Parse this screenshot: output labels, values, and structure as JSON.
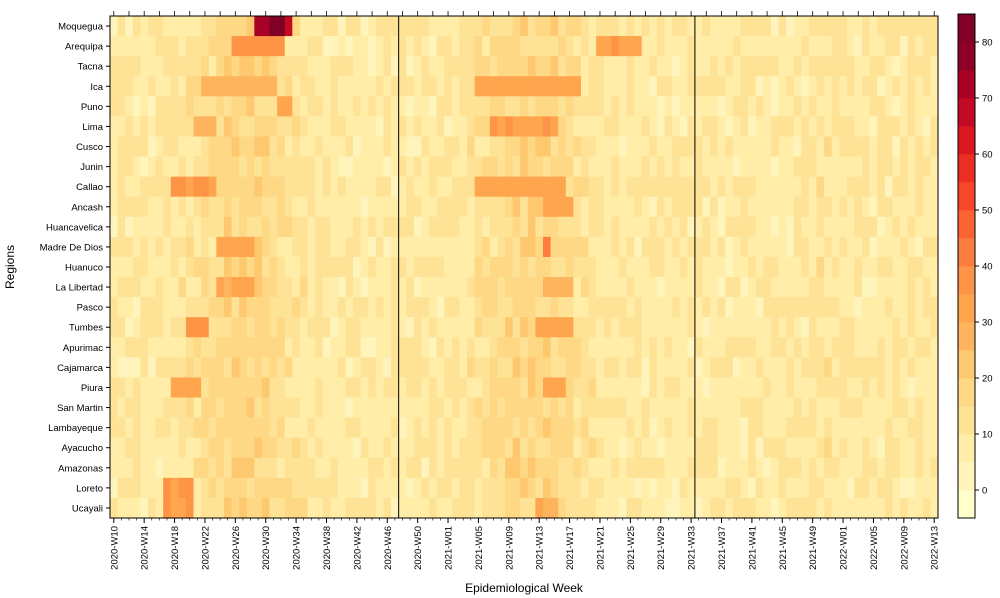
{
  "chart_data": {
    "type": "heatmap",
    "title": "",
    "xlabel": "Epidemiological Week",
    "ylabel": "Regions",
    "regions": [
      "Moquegua",
      "Arequipa",
      "Tacna",
      "Ica",
      "Puno",
      "Lima",
      "Cusco",
      "Junin",
      "Callao",
      "Ancash",
      "Huancavelica",
      "Madre De Dios",
      "Huanuco",
      "La Libertad",
      "Pasco",
      "Tumbes",
      "Apurimac",
      "Cajamarca",
      "Piura",
      "San Martin",
      "Lambayeque",
      "Ayacucho",
      "Amazonas",
      "Loreto",
      "Ucayali"
    ],
    "x_tick_labels": [
      "2020-W10",
      "2020-W14",
      "2020-W18",
      "2020-W22",
      "2020-W26",
      "2020-W30",
      "2020-W34",
      "2020-W38",
      "2020-W42",
      "2020-W46",
      "2020-W50",
      "2021-W01",
      "2021-W05",
      "2021-W09",
      "2021-W13",
      "2021-W17",
      "2021-W21",
      "2021-W25",
      "2021-W29",
      "2021-W33",
      "2021-W37",
      "2021-W41",
      "2021-W45",
      "2021-W49",
      "2022-W01",
      "2022-W05",
      "2022-W09",
      "2022-W13"
    ],
    "week_range": {
      "first": "2020-W10",
      "last": "2022-W13"
    },
    "vertical_lines_at": [
      "2020-W48",
      "2021-W34"
    ],
    "colorbar": {
      "min": -5,
      "max": 83,
      "step": 5,
      "tick_values": [
        0,
        10,
        20,
        30,
        40,
        50,
        60,
        70,
        80
      ],
      "palette": [
        "#FFFFCC",
        "#FFF5BC",
        "#FFEDA8",
        "#FEE396",
        "#FED884",
        "#FEC86F",
        "#FEB45D",
        "#FEA54E",
        "#FD9446",
        "#FD7E3C",
        "#FC6332",
        "#F64729",
        "#EA2E22",
        "#DA181F",
        "#C30A24",
        "#A90026",
        "#8F0026",
        "#800026"
      ]
    },
    "blocks": [
      {
        "region": "Moquegua",
        "from": "2020-W29",
        "to": "2020-W33",
        "value": 70
      },
      {
        "region": "Moquegua",
        "from": "2020-W31",
        "to": "2020-W32",
        "value": 82
      },
      {
        "region": "Arequipa",
        "from": "2020-W26",
        "to": "2020-W32",
        "value": 38
      },
      {
        "region": "Arequipa",
        "from": "2021-W21",
        "to": "2021-W26",
        "value": 34
      },
      {
        "region": "Ica",
        "from": "2021-W05",
        "to": "2021-W18",
        "value": 32
      },
      {
        "region": "Ica",
        "from": "2020-W22",
        "to": "2020-W31",
        "value": 27
      },
      {
        "region": "Puno",
        "from": "2020-W32",
        "to": "2020-W33",
        "value": 33
      },
      {
        "region": "Lima",
        "from": "2021-W07",
        "to": "2021-W15",
        "value": 34
      },
      {
        "region": "Lima",
        "from": "2020-W21",
        "to": "2020-W23",
        "value": 29
      },
      {
        "region": "Callao",
        "from": "2020-W18",
        "to": "2020-W23",
        "value": 36
      },
      {
        "region": "Callao",
        "from": "2021-W05",
        "to": "2021-W16",
        "value": 32
      },
      {
        "region": "Ancash",
        "from": "2021-W14",
        "to": "2021-W17",
        "value": 33
      },
      {
        "region": "Madre De Dios",
        "from": "2020-W24",
        "to": "2020-W28",
        "value": 32
      },
      {
        "region": "Madre De Dios",
        "from": "2021-W14",
        "to": "2021-W14",
        "value": 40
      },
      {
        "region": "La Libertad",
        "from": "2020-W24",
        "to": "2020-W28",
        "value": 30
      },
      {
        "region": "La Libertad",
        "from": "2021-W14",
        "to": "2021-W17",
        "value": 30
      },
      {
        "region": "Tumbes",
        "from": "2020-W20",
        "to": "2020-W22",
        "value": 37
      },
      {
        "region": "Tumbes",
        "from": "2021-W13",
        "to": "2021-W17",
        "value": 32
      },
      {
        "region": "Piura",
        "from": "2020-W18",
        "to": "2020-W21",
        "value": 32
      },
      {
        "region": "Piura",
        "from": "2021-W14",
        "to": "2021-W16",
        "value": 33
      },
      {
        "region": "Loreto",
        "from": "2020-W17",
        "to": "2020-W20",
        "value": 35
      },
      {
        "region": "Ucayali",
        "from": "2020-W17",
        "to": "2020-W20",
        "value": 35
      },
      {
        "region": "Ucayali",
        "from": "2021-W13",
        "to": "2021-W15",
        "value": 30
      }
    ]
  }
}
